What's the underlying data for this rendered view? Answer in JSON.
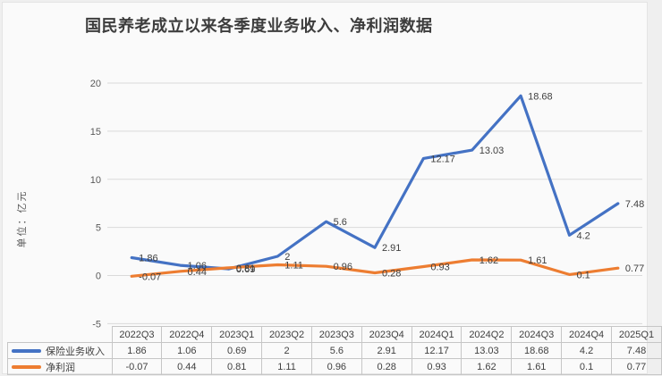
{
  "title": "国民养老成立以来各季度业务收入、净利润数据",
  "y_axis": {
    "unit_label": "单位：亿元",
    "ticks": [
      20,
      15,
      10,
      5,
      0,
      -5
    ]
  },
  "chart_data": {
    "type": "line",
    "title": "国民养老成立以来各季度业务收入、净利润数据",
    "xlabel": "",
    "ylabel": "单位：亿元",
    "ylim": [
      -5,
      20
    ],
    "grid": true,
    "legend_position": "table-left",
    "categories": [
      "2022Q3",
      "2022Q4",
      "2023Q1",
      "2023Q2",
      "2023Q3",
      "2023Q4",
      "2024Q1",
      "2024Q2",
      "2024Q3",
      "2024Q4",
      "2025Q1"
    ],
    "series": [
      {
        "name": "保险业务收入",
        "color": "#4472C4",
        "values": [
          1.86,
          1.06,
          0.69,
          2,
          5.6,
          2.91,
          12.17,
          13.03,
          18.68,
          4.2,
          7.48
        ],
        "labels": [
          "1.86",
          "1.06",
          "0.69",
          "2",
          "5.6",
          "2.91",
          "12.17",
          "13.03",
          "18.68",
          "4.2",
          "7.48"
        ]
      },
      {
        "name": "净利润",
        "color": "#ED7D31",
        "values": [
          -0.07,
          0.44,
          0.81,
          1.11,
          0.96,
          0.28,
          0.93,
          1.62,
          1.61,
          0.1,
          0.77
        ],
        "labels": [
          "-0.07",
          "0.44",
          "0.81",
          "1.11",
          "0.96",
          "0.28",
          "0.93",
          "1.62",
          "1.61",
          "0.1",
          "0.77"
        ]
      }
    ]
  },
  "colors": {
    "grid_line": "#dadada",
    "tick_text": "#595959",
    "data_label_text": "#404040",
    "table_border": "#c6c6c6",
    "outer_background": "#efefef",
    "chart_background": "#fafafa"
  }
}
